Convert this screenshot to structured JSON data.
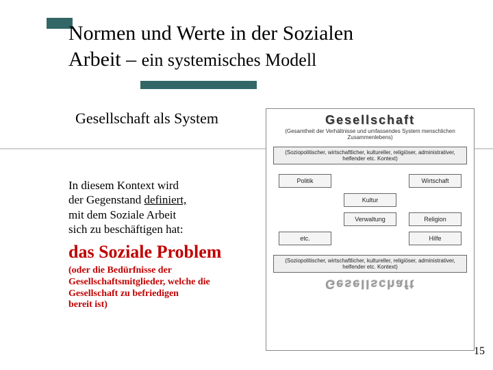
{
  "colors": {
    "accent": "#336666",
    "emph": "#c00000",
    "rule": "#d0d0d0"
  },
  "title": {
    "line1": "Normen und Werte in der Sozialen",
    "line2_a": "Arbeit – ",
    "line2_b": "ein systemisches Modell"
  },
  "subheading": "Gesellschaft als System",
  "para": {
    "l1": "In diesem Kontext wird",
    "l2a": "der Gegenstand ",
    "l2b": "definiert,",
    "l3": "mit dem Soziale Arbeit",
    "l4": "sich zu beschäftigen hat:"
  },
  "emph": "das Soziale Problem",
  "emph2": {
    "l1": "(oder die Bedürfnisse der",
    "l2": "Gesellschaftsmitglieder, welche die",
    "l3": "Gesellschaft zu befriedigen",
    "l4": "bereit ist)"
  },
  "diagram": {
    "top_label": "Gesellschaft",
    "top_sub": "(Gesamtheit der Verhältnisse und umfassendes System menschlichen Zusammenlebens)",
    "stripe_top": "(Soziopolitischer, wirtschaftlicher, kultureller, religiöser, administrativer, helfender etc. Kontext)",
    "cells": [
      "Politik",
      "",
      "Wirtschaft",
      "",
      "Kultur",
      "",
      "etc.",
      "Verwaltung",
      "Religion",
      "",
      "",
      "Hilfe"
    ],
    "grid": [
      [
        "Politik",
        "",
        "Wirtschaft"
      ],
      [
        "",
        "Kultur",
        ""
      ],
      [
        "",
        "Verwaltung",
        "Religion"
      ],
      [
        "etc.",
        "",
        "Hilfe"
      ]
    ],
    "stripe_bot": "(Soziopolitischer, wirtschaftlicher, kultureller, religiöser, administrativer, helfender etc. Kontext)",
    "bot_label": "Gesellschaft"
  },
  "page_number": "15"
}
